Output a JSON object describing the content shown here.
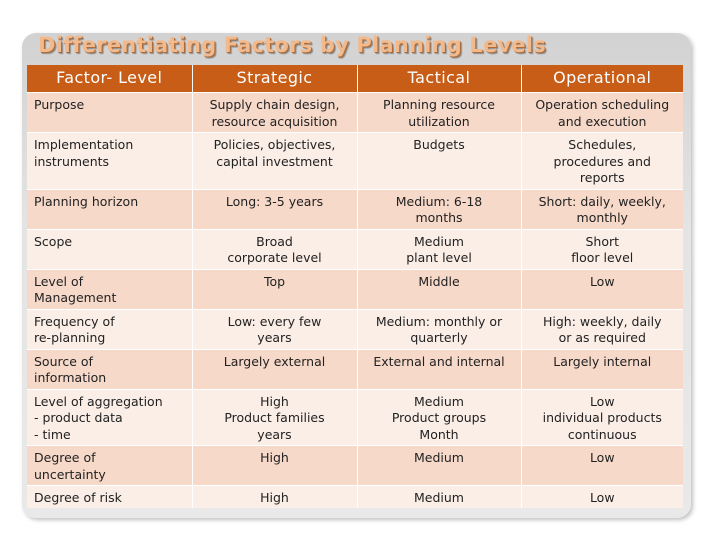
{
  "title": "Differentiating Factors by Planning Levels",
  "header": [
    "Factor- Level",
    "Strategic",
    "Tactical",
    "Operational"
  ],
  "rows": [
    {
      "factor": "Purpose",
      "strategic": "Supply chain design,\nresource acquisition",
      "tactical": "Planning resource\nutilization",
      "operational": "Operation scheduling\nand execution"
    },
    {
      "factor": "Implementation\ninstruments",
      "strategic": "Policies, objectives,\ncapital investment",
      "tactical": "Budgets",
      "operational": "Schedules,\nprocedures and\nreports"
    },
    {
      "factor": "Planning horizon",
      "strategic": "Long: 3-5 years",
      "tactical": "Medium: 6-18\nmonths",
      "operational": "Short: daily, weekly,\nmonthly"
    },
    {
      "factor": "Scope",
      "strategic": "Broad\ncorporate level",
      "tactical": "Medium\nplant level",
      "operational": "Short\nfloor level"
    },
    {
      "factor": "Level of\nManagement",
      "strategic": "Top",
      "tactical": "Middle",
      "operational": "Low"
    },
    {
      "factor": "Frequency of\nre-planning",
      "strategic": "Low: every few\nyears",
      "tactical": "Medium: monthly or\nquarterly",
      "operational": "High: weekly, daily\nor as required"
    },
    {
      "factor": "Source of\ninformation",
      "strategic": "Largely external",
      "tactical": "External and internal",
      "operational": "Largely internal"
    },
    {
      "factor": "Level of aggregation\n- product data\n- time",
      "strategic": "High\nProduct families\nyears",
      "tactical": "Medium\nProduct groups\nMonth",
      "operational": "Low\nindividual products\ncontinuous"
    },
    {
      "factor": "Degree of\nuncertainty",
      "strategic": "High",
      "tactical": "Medium",
      "operational": "Low"
    },
    {
      "factor": "Degree of risk",
      "strategic": "High",
      "tactical": "Medium",
      "operational": "Low"
    }
  ],
  "colors": {
    "header_bg": "#c75d17",
    "row_odd": "#f7d9c9",
    "row_even": "#fbeee7",
    "title": "#f1b98c"
  }
}
